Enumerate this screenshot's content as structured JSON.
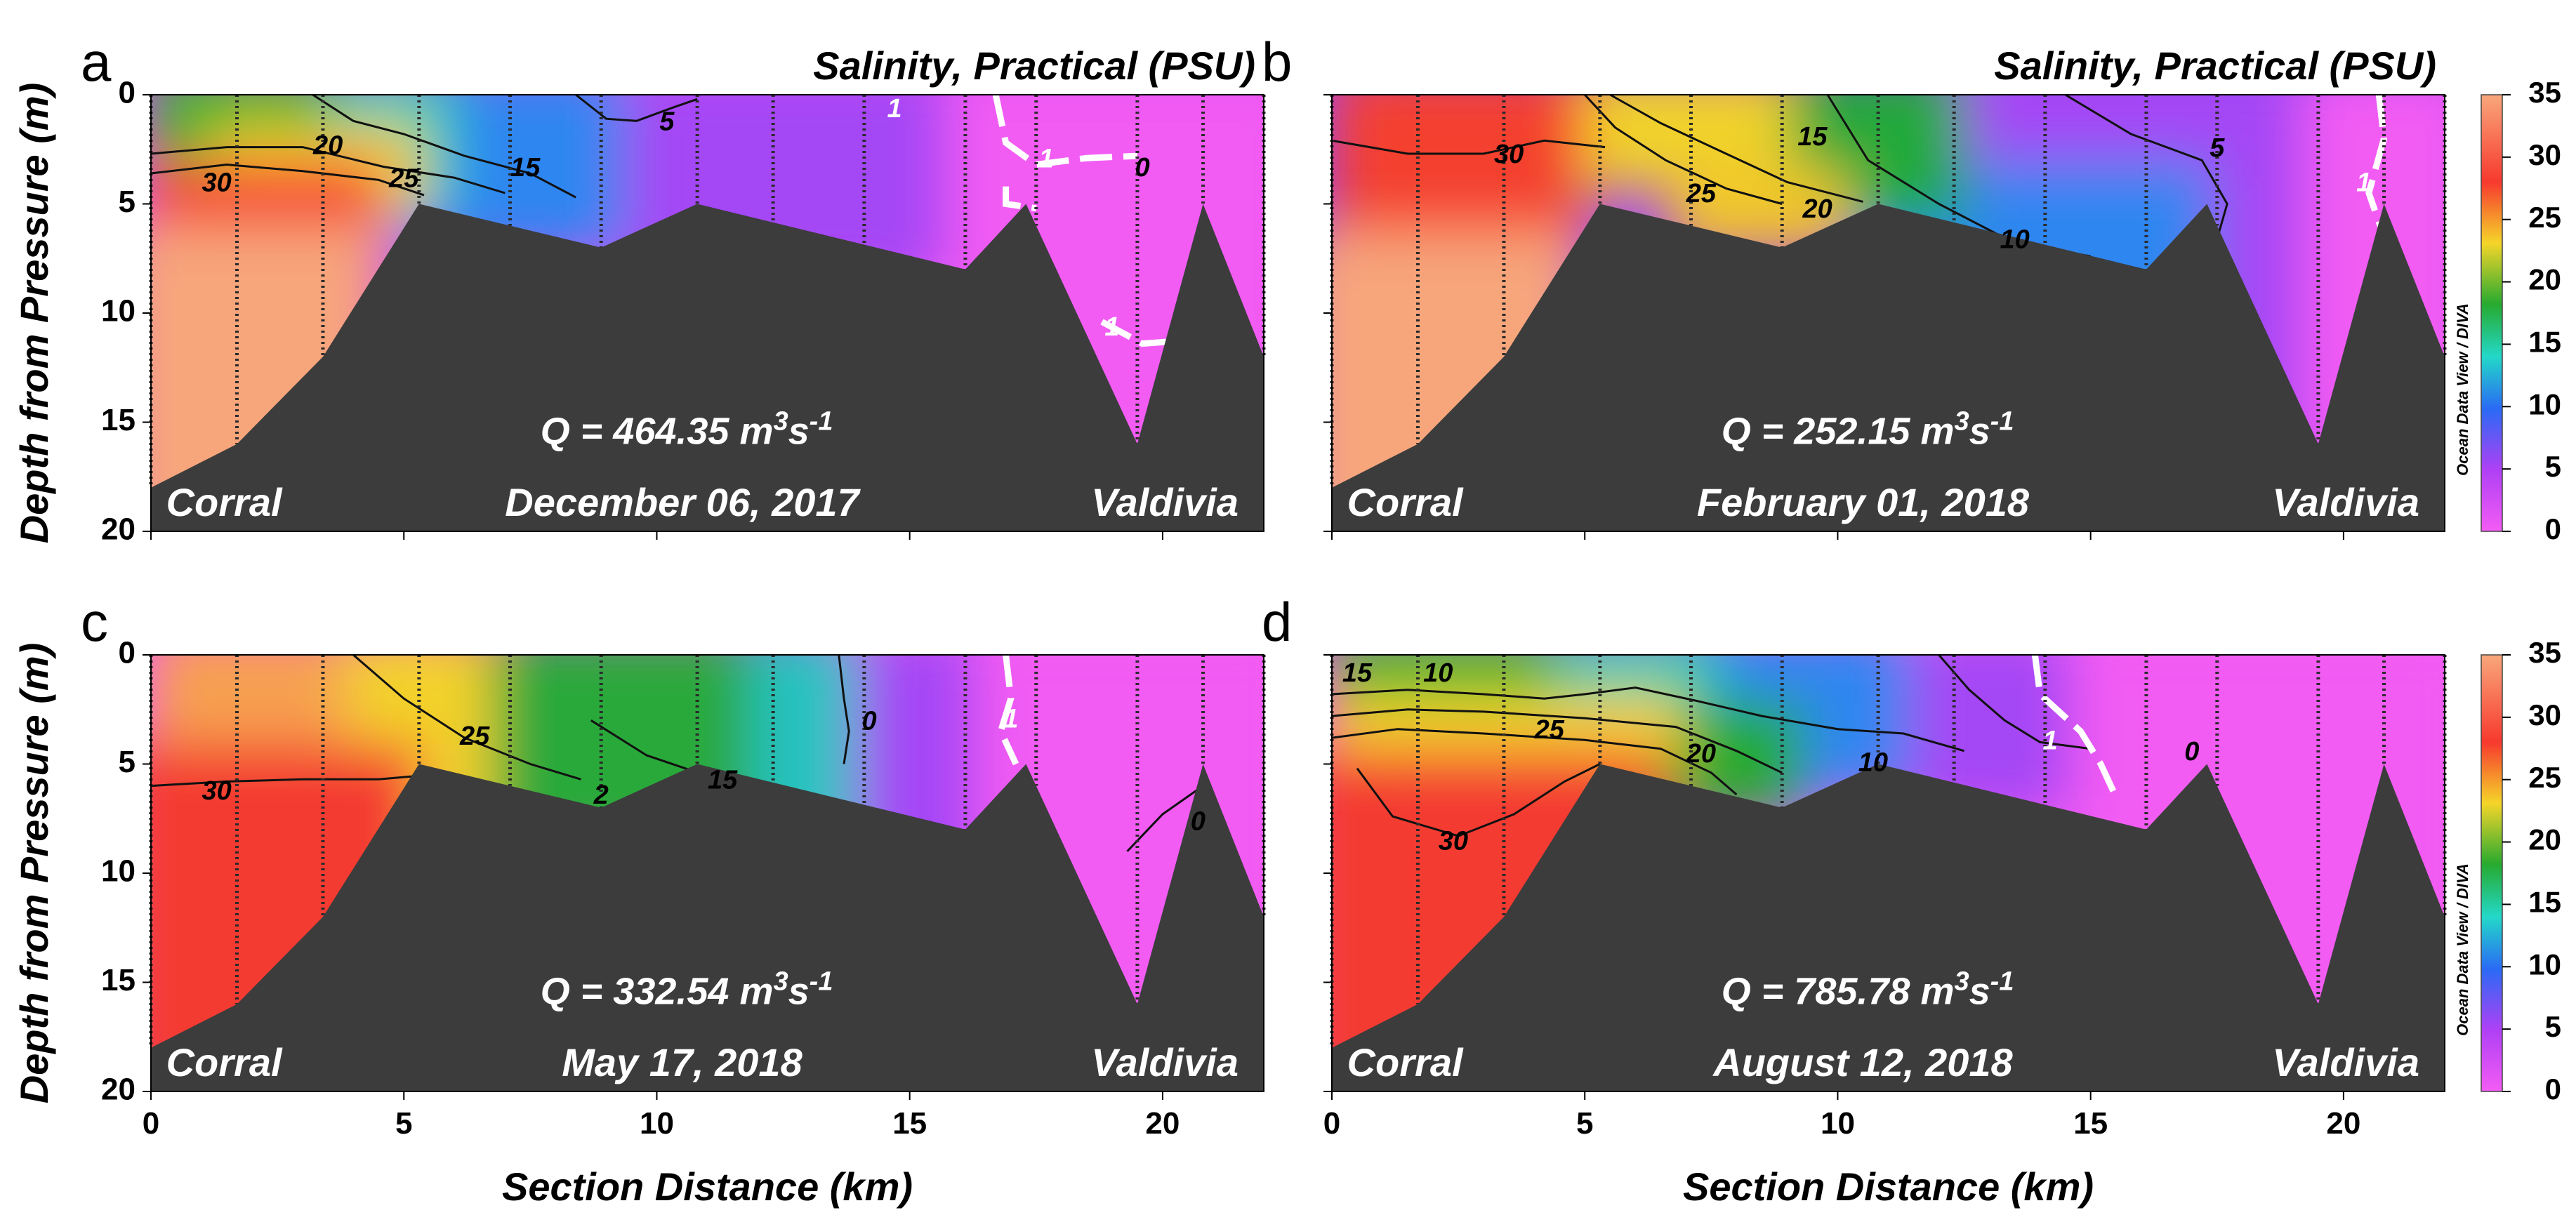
{
  "chart_data": {
    "type": "heatmap",
    "title": "Salinity, Practical (PSU)",
    "xlabel": "Section Distance (km)",
    "ylabel": "Depth from Pressure (m)",
    "xlim": [
      0,
      22
    ],
    "ylim": [
      20,
      0
    ],
    "xticks": [
      "0",
      "5",
      "10",
      "15",
      "20"
    ],
    "yticks": [
      "0",
      "5",
      "10",
      "15",
      "20"
    ],
    "colorbar": {
      "range": [
        0,
        35
      ],
      "ticks": [
        "0",
        "5",
        "10",
        "15",
        "20",
        "25",
        "30",
        "35"
      ],
      "credit": "Ocean Data View / DIVA",
      "colors": [
        "#f45cf5",
        "#b040f5",
        "#2a6af5",
        "#23d8c8",
        "#27aa2f",
        "#f5d52a",
        "#f7392e",
        "#f8a77b"
      ]
    },
    "stations_km": [
      0,
      1.7,
      3.4,
      5.3,
      7.1,
      8.9,
      10.8,
      12.3,
      14.1,
      16.1,
      17.5,
      19.5,
      20.8,
      22
    ],
    "bathymetry": {
      "distance_km": [
        0,
        1.7,
        3.4,
        5.3,
        8.9,
        10.8,
        16.1,
        17.3,
        19.5,
        20.8,
        22
      ],
      "depth_m": [
        18,
        16,
        12,
        5,
        7,
        5,
        8,
        5,
        16,
        5,
        12
      ]
    },
    "panels": [
      {
        "letter": "a",
        "title": "Salinity, Practical (PSU)",
        "discharge_label": "Q = 464.35 m",
        "discharge_sup": "3",
        "discharge_unit": "s",
        "discharge_unit_sup": "-1",
        "date": "December 06, 2017",
        "site_left": "Corral",
        "site_right": "Valdivia",
        "contour_labels": [
          "30",
          "25",
          "20",
          "15",
          "5",
          "1",
          "1",
          "0",
          "1"
        ]
      },
      {
        "letter": "b",
        "title": "Salinity, Practical (PSU)",
        "discharge_label": "Q = 252.15 m",
        "discharge_sup": "3",
        "discharge_unit": "s",
        "discharge_unit_sup": "-1",
        "date": "February 01, 2018",
        "site_left": "Corral",
        "site_right": "Valdivia",
        "contour_labels": [
          "30",
          "25",
          "20",
          "15",
          "10",
          "5",
          "1"
        ]
      },
      {
        "letter": "c",
        "title": "",
        "discharge_label": "Q = 332.54 m",
        "discharge_sup": "3",
        "discharge_unit": "s",
        "discharge_unit_sup": "-1",
        "date": "May 17, 2018",
        "site_left": "Corral",
        "site_right": "Valdivia",
        "contour_labels": [
          "30",
          "25",
          "2",
          "15",
          "0",
          "1",
          "0"
        ]
      },
      {
        "letter": "d",
        "title": "",
        "discharge_label": "Q = 785.78 m",
        "discharge_sup": "3",
        "discharge_unit": "s",
        "discharge_unit_sup": "-1",
        "date": "August 12, 2018",
        "site_left": "Corral",
        "site_right": "Valdivia",
        "contour_labels": [
          "15",
          "10",
          "25",
          "20",
          "10",
          "30",
          "1",
          "0"
        ]
      }
    ]
  }
}
